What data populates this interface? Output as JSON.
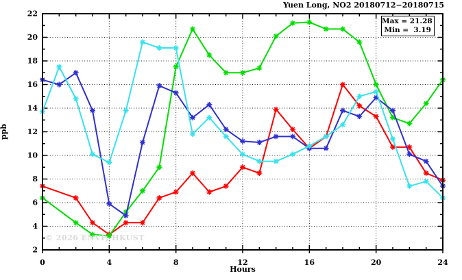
{
  "title": "Yuen Long, NO2 20180712−20180715",
  "legend": {
    "max_label": "Max = 21.28",
    "min_label": "Min =  3.19"
  },
  "watermark": "© 2026 ENVF, HKUST",
  "axes": {
    "y_label": "ppb",
    "x_label": "Hours"
  },
  "chart_data": {
    "type": "line",
    "title": "Yuen Long, NO2 20180712−20180715",
    "xlabel": "Hours",
    "ylabel": "ppb",
    "xlim": [
      0,
      24
    ],
    "ylim": [
      2,
      22
    ],
    "x_major_ticks": [
      0,
      4,
      8,
      12,
      16,
      20,
      24
    ],
    "y_major_ticks": [
      2,
      4,
      6,
      8,
      10,
      12,
      14,
      16,
      18,
      20,
      22
    ],
    "x_minor_step": 1,
    "y_minor_step": 1,
    "grid": true,
    "legend_position": "top-right",
    "annotations": {
      "max": 21.28,
      "min": 3.19
    },
    "x": [
      0,
      1,
      2,
      3,
      4,
      5,
      6,
      7,
      8,
      9,
      10,
      11,
      12,
      13,
      14,
      15,
      16,
      17,
      18,
      19,
      20,
      21,
      22,
      23,
      24
    ],
    "series": [
      {
        "name": "series-red",
        "color": "#ff0000",
        "values": [
          7.4,
          null,
          6.4,
          4.3,
          3.3,
          4.3,
          4.3,
          6.4,
          6.9,
          8.5,
          6.9,
          7.4,
          9.0,
          8.5,
          13.9,
          12.2,
          10.6,
          11.6,
          16.0,
          14.2,
          13.3,
          10.7,
          10.7,
          8.5,
          7.9
        ]
      },
      {
        "name": "series-green",
        "color": "#00dd00",
        "values": [
          6.4,
          null,
          4.3,
          3.3,
          3.19,
          5.2,
          7.0,
          9.0,
          17.5,
          20.7,
          18.5,
          17.0,
          17.0,
          17.4,
          20.1,
          21.2,
          21.28,
          20.7,
          20.7,
          19.6,
          16.0,
          13.2,
          12.7,
          14.4,
          16.4
        ]
      },
      {
        "name": "series-blue",
        "color": "#3030d0",
        "values": [
          16.4,
          16.0,
          17.0,
          13.8,
          5.9,
          4.9,
          11.1,
          15.9,
          15.3,
          13.2,
          14.3,
          12.2,
          11.2,
          11.1,
          11.6,
          11.6,
          10.6,
          10.6,
          13.8,
          13.3,
          14.9,
          13.8,
          10.1,
          9.5,
          7.4
        ]
      },
      {
        "name": "series-cyan",
        "color": "#38e2ec",
        "values": [
          13.7,
          17.5,
          14.8,
          10.1,
          9.4,
          13.8,
          19.6,
          19.1,
          19.1,
          11.8,
          13.2,
          11.6,
          10.1,
          9.5,
          9.5,
          10.1,
          10.8,
          11.6,
          12.6,
          15.0,
          15.4,
          11.4,
          7.4,
          7.8,
          6.4
        ]
      }
    ]
  }
}
